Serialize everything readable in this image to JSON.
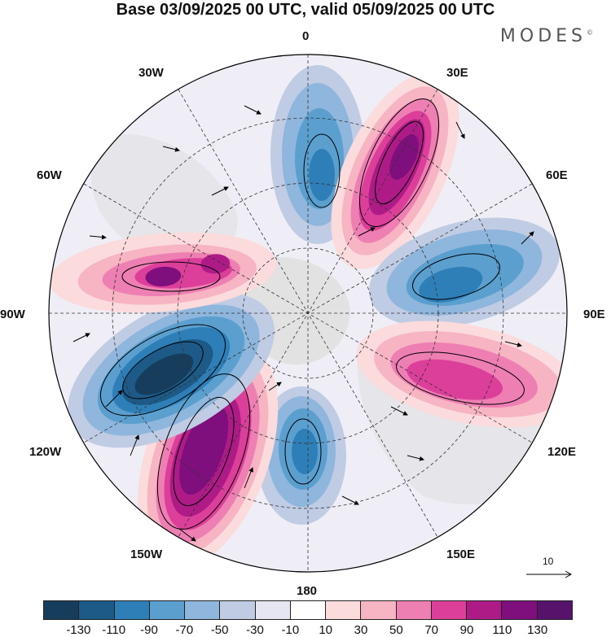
{
  "title": "Base 03/09/2025 00 UTC, valid 05/09/2025 00 UTC",
  "brand": "MODES",
  "brand_mark": "©",
  "longitudes": {
    "n": "0",
    "ne1": "30E",
    "ne2": "60E",
    "e": "90E",
    "se1": "120E",
    "se2": "150E",
    "s": "180",
    "sw2": "150W",
    "sw1": "120W",
    "w": "90W",
    "nw2": "60W",
    "nw1": "30W"
  },
  "reference_vector": "10",
  "colorbar": {
    "colors": [
      "#173d5c",
      "#1d5a87",
      "#2e7fb8",
      "#5b9fcf",
      "#8fb6dc",
      "#c0cce4",
      "#e6e6f2",
      "#ffffff",
      "#fbdbdc",
      "#f7b4c2",
      "#ee7fb3",
      "#dc3f9a",
      "#ae1b87",
      "#7e0f7d",
      "#57136c"
    ],
    "ticks": [
      "-130",
      "-110",
      "-90",
      "-70",
      "-50",
      "-30",
      "-10",
      "10",
      "30",
      "50",
      "70",
      "90",
      "110",
      "130"
    ]
  },
  "map_data": {
    "projection": "north-polar-stereographic",
    "field": "streamfunction anomaly with wind vectors",
    "centers": [
      {
        "name": "low-north",
        "value": -70
      },
      {
        "name": "high-ne",
        "value": 130
      },
      {
        "name": "low-east",
        "value": -80
      },
      {
        "name": "high-se",
        "value": 90
      },
      {
        "name": "low-south",
        "value": -80
      },
      {
        "name": "high-sw",
        "value": 130
      },
      {
        "name": "low-west",
        "value": -130
      },
      {
        "name": "high-nw",
        "value": 110
      }
    ]
  }
}
